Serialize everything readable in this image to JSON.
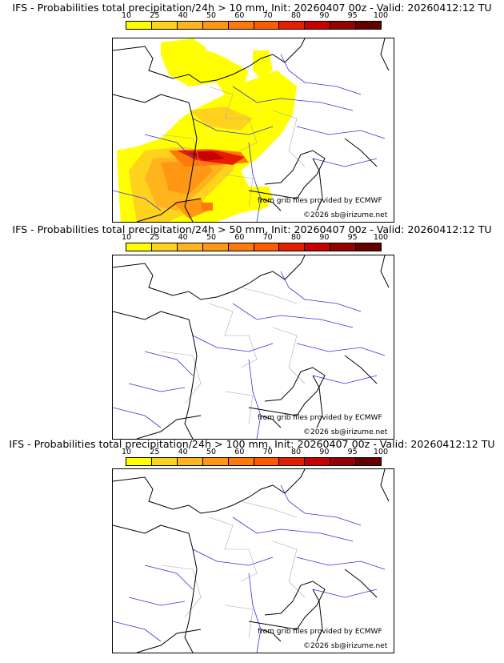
{
  "colorbar": {
    "ticks": [
      "10",
      "25",
      "40",
      "50",
      "60",
      "70",
      "80",
      "90",
      "95",
      "100"
    ],
    "colors": [
      "#ffff00",
      "#ffd21e",
      "#ffb41e",
      "#ff9614",
      "#ff780a",
      "#ff5a00",
      "#e61e00",
      "#c80000",
      "#960000",
      "#640000"
    ]
  },
  "panels": [
    {
      "title": "IFS - Probabilities total precipitation/24h > 10 mm, Init: 20260407 00z - Valid: 20260412:12 TU"
    },
    {
      "title": "IFS - Probabilities total precipitation/24h > 50 mm, Init: 20260407 00z - Valid: 20260412:12 TU"
    },
    {
      "title": "IFS - Probabilities total precipitation/24h > 100 mm, Init: 20260407 00z - Valid: 20260412:12 TU"
    }
  ],
  "credits": {
    "source": "from grib files provided by ECMWF",
    "copyright": "©2026 sb@irizume.net"
  },
  "map_colors": {
    "coast": "#000000",
    "rivers": "#3333dd",
    "borders": "#aaaaaa"
  }
}
